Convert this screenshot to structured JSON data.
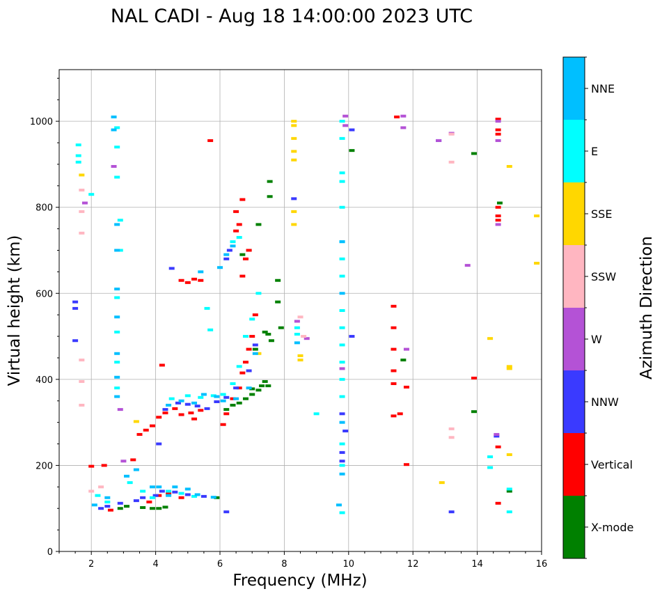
{
  "chart_data": {
    "type": "scatter",
    "title": "NAL CADI - Aug 18 14:00:00 2023 UTC",
    "xlabel": "Frequency (MHz)",
    "ylabel": "Virtual height (km)",
    "xlim": [
      1,
      16
    ],
    "ylim": [
      0,
      1120
    ],
    "xticks": [
      2,
      4,
      6,
      8,
      10,
      12,
      14,
      16
    ],
    "xtick_labels": [
      "2",
      "4",
      "6",
      "8",
      "10",
      "12",
      "14",
      "16"
    ],
    "yticks": [
      0,
      200,
      400,
      600,
      800,
      1000
    ],
    "ytick_labels": [
      "0",
      "200",
      "400",
      "600",
      "800",
      "1000"
    ],
    "grid": true,
    "colorbar": {
      "label": "Azimuth Direction",
      "categories": [
        "X-mode",
        "Vertical",
        "NNW",
        "W",
        "SSW",
        "SSE",
        "E",
        "NNE"
      ],
      "colors": [
        "#008000",
        "#ff0000",
        "#3a3aff",
        "#b452d6",
        "#ffb6c1",
        "#ffd700",
        "#00ffff",
        "#00bfff"
      ]
    },
    "series": [
      {
        "name": "X-mode",
        "points": [
          [
            2.9,
            100
          ],
          [
            3.1,
            105
          ],
          [
            3.6,
            102
          ],
          [
            3.9,
            100
          ],
          [
            4.1,
            100
          ],
          [
            4.3,
            103
          ],
          [
            5.9,
            125
          ],
          [
            6.2,
            330
          ],
          [
            6.4,
            340
          ],
          [
            6.6,
            345
          ],
          [
            6.8,
            355
          ],
          [
            7.0,
            365
          ],
          [
            7.2,
            375
          ],
          [
            7.3,
            385
          ],
          [
            7.4,
            395
          ],
          [
            7.5,
            385
          ],
          [
            7.0,
            378
          ],
          [
            7.1,
            470
          ],
          [
            7.4,
            510
          ],
          [
            7.5,
            505
          ],
          [
            7.6,
            490
          ],
          [
            7.8,
            580
          ],
          [
            7.8,
            630
          ],
          [
            7.9,
            520
          ],
          [
            6.7,
            690
          ],
          [
            6.9,
            700
          ],
          [
            7.2,
            760
          ],
          [
            7.55,
            825
          ],
          [
            7.55,
            860
          ],
          [
            10.1,
            932
          ],
          [
            13.9,
            925
          ],
          [
            13.9,
            325
          ],
          [
            14.7,
            810
          ],
          [
            15.0,
            140
          ],
          [
            11.7,
            445
          ]
        ]
      },
      {
        "name": "Vertical",
        "points": [
          [
            2.0,
            198
          ],
          [
            2.4,
            200
          ],
          [
            2.6,
            96
          ],
          [
            3.3,
            213
          ],
          [
            3.8,
            115
          ],
          [
            4.1,
            130
          ],
          [
            4.4,
            135
          ],
          [
            4.8,
            125
          ],
          [
            3.5,
            272
          ],
          [
            3.7,
            282
          ],
          [
            3.9,
            292
          ],
          [
            4.1,
            312
          ],
          [
            4.3,
            322
          ],
          [
            4.6,
            332
          ],
          [
            4.8,
            318
          ],
          [
            5.1,
            322
          ],
          [
            5.4,
            328
          ],
          [
            5.2,
            308
          ],
          [
            4.8,
            630
          ],
          [
            5.0,
            625
          ],
          [
            5.2,
            633
          ],
          [
            5.4,
            630
          ],
          [
            5.7,
            955
          ],
          [
            6.1,
            295
          ],
          [
            6.2,
            320
          ],
          [
            6.4,
            355
          ],
          [
            6.6,
            380
          ],
          [
            6.7,
            415
          ],
          [
            6.8,
            440
          ],
          [
            6.9,
            470
          ],
          [
            7.0,
            500
          ],
          [
            7.1,
            550
          ],
          [
            6.7,
            640
          ],
          [
            6.8,
            680
          ],
          [
            6.9,
            700
          ],
          [
            6.6,
            760
          ],
          [
            6.5,
            790
          ],
          [
            6.7,
            818
          ],
          [
            6.5,
            745
          ],
          [
            11.4,
            570
          ],
          [
            11.4,
            520
          ],
          [
            11.4,
            470
          ],
          [
            11.4,
            420
          ],
          [
            11.4,
            390
          ],
          [
            11.6,
            320
          ],
          [
            11.8,
            382
          ],
          [
            11.8,
            202
          ],
          [
            11.5,
            1010
          ],
          [
            11.4,
            315
          ],
          [
            13.9,
            403
          ],
          [
            14.65,
            1005
          ],
          [
            14.65,
            980
          ],
          [
            14.65,
            970
          ],
          [
            14.65,
            800
          ],
          [
            14.65,
            780
          ],
          [
            14.65,
            770
          ],
          [
            14.65,
            243
          ],
          [
            14.65,
            112
          ],
          [
            4.2,
            433
          ]
        ]
      },
      {
        "name": "NNW",
        "points": [
          [
            1.5,
            580
          ],
          [
            1.5,
            565
          ],
          [
            1.5,
            490
          ],
          [
            2.3,
            100
          ],
          [
            2.5,
            105
          ],
          [
            2.9,
            112
          ],
          [
            3.4,
            118
          ],
          [
            3.6,
            125
          ],
          [
            4.0,
            130
          ],
          [
            4.2,
            140
          ],
          [
            4.6,
            138
          ],
          [
            5.0,
            132
          ],
          [
            5.5,
            128
          ],
          [
            6.2,
            92
          ],
          [
            4.1,
            250
          ],
          [
            4.3,
            330
          ],
          [
            4.7,
            345
          ],
          [
            5.0,
            342
          ],
          [
            5.3,
            338
          ],
          [
            5.6,
            332
          ],
          [
            5.9,
            348
          ],
          [
            6.2,
            358
          ],
          [
            6.5,
            380
          ],
          [
            6.9,
            420
          ],
          [
            7.1,
            480
          ],
          [
            4.5,
            658
          ],
          [
            6.2,
            680
          ],
          [
            6.3,
            700
          ],
          [
            8.3,
            820
          ],
          [
            9.8,
            320
          ],
          [
            9.9,
            280
          ],
          [
            9.8,
            230
          ],
          [
            9.8,
            210
          ],
          [
            10.1,
            980
          ],
          [
            10.1,
            500
          ],
          [
            13.2,
            92
          ],
          [
            12.8,
            955
          ],
          [
            14.6,
            268
          ]
        ]
      },
      {
        "name": "W",
        "points": [
          [
            1.8,
            810
          ],
          [
            2.7,
            895
          ],
          [
            2.9,
            330
          ],
          [
            3.0,
            210
          ],
          [
            8.4,
            535
          ],
          [
            8.7,
            495
          ],
          [
            9.9,
            1012
          ],
          [
            9.9,
            990
          ],
          [
            9.8,
            425
          ],
          [
            11.7,
            1012
          ],
          [
            11.7,
            985
          ],
          [
            11.8,
            470
          ],
          [
            12.8,
            955
          ],
          [
            13.2,
            972
          ],
          [
            13.7,
            665
          ],
          [
            14.6,
            272
          ],
          [
            14.65,
            1000
          ],
          [
            14.65,
            955
          ],
          [
            14.65,
            760
          ]
        ]
      },
      {
        "name": "SSW",
        "points": [
          [
            1.7,
            840
          ],
          [
            1.7,
            790
          ],
          [
            1.7,
            740
          ],
          [
            1.7,
            445
          ],
          [
            1.7,
            395
          ],
          [
            1.7,
            340
          ],
          [
            2.0,
            140
          ],
          [
            2.3,
            150
          ],
          [
            8.5,
            545
          ],
          [
            8.6,
            500
          ],
          [
            13.2,
            905
          ],
          [
            13.2,
            970
          ],
          [
            13.2,
            285
          ],
          [
            13.2,
            265
          ]
        ]
      },
      {
        "name": "SSE",
        "points": [
          [
            1.7,
            875
          ],
          [
            8.3,
            1000
          ],
          [
            8.3,
            990
          ],
          [
            8.3,
            960
          ],
          [
            8.3,
            930
          ],
          [
            8.3,
            910
          ],
          [
            8.3,
            790
          ],
          [
            8.3,
            760
          ],
          [
            8.5,
            455
          ],
          [
            8.5,
            445
          ],
          [
            3.4,
            302
          ],
          [
            12.9,
            160
          ],
          [
            14.4,
            495
          ],
          [
            15.0,
            895
          ],
          [
            15.0,
            430
          ],
          [
            15.0,
            425
          ],
          [
            15.0,
            225
          ],
          [
            15.85,
            780
          ],
          [
            15.85,
            670
          ],
          [
            7.2,
            460
          ]
        ]
      },
      {
        "name": "E",
        "points": [
          [
            1.6,
            945
          ],
          [
            1.6,
            920
          ],
          [
            1.6,
            905
          ],
          [
            2.0,
            830
          ],
          [
            2.8,
            985
          ],
          [
            2.8,
            940
          ],
          [
            2.8,
            870
          ],
          [
            2.9,
            770
          ],
          [
            2.9,
            700
          ],
          [
            2.8,
            590
          ],
          [
            2.8,
            510
          ],
          [
            2.8,
            440
          ],
          [
            2.8,
            380
          ],
          [
            2.2,
            130
          ],
          [
            2.5,
            115
          ],
          [
            3.2,
            160
          ],
          [
            3.6,
            140
          ],
          [
            3.9,
            125
          ],
          [
            4.4,
            140
          ],
          [
            4.8,
            135
          ],
          [
            5.2,
            128
          ],
          [
            4.5,
            355
          ],
          [
            5.0,
            362
          ],
          [
            5.4,
            358
          ],
          [
            5.8,
            362
          ],
          [
            6.1,
            365
          ],
          [
            6.4,
            390
          ],
          [
            6.6,
            430
          ],
          [
            6.8,
            500
          ],
          [
            7.0,
            540
          ],
          [
            7.2,
            600
          ],
          [
            6.4,
            720
          ],
          [
            6.6,
            730
          ],
          [
            5.7,
            515
          ],
          [
            5.6,
            565
          ],
          [
            9.0,
            320
          ],
          [
            9.8,
            1000
          ],
          [
            9.8,
            960
          ],
          [
            9.8,
            880
          ],
          [
            9.8,
            860
          ],
          [
            9.8,
            800
          ],
          [
            9.8,
            720
          ],
          [
            9.8,
            680
          ],
          [
            9.8,
            640
          ],
          [
            9.8,
            560
          ],
          [
            9.8,
            520
          ],
          [
            9.8,
            480
          ],
          [
            9.8,
            440
          ],
          [
            9.8,
            400
          ],
          [
            9.8,
            360
          ],
          [
            9.8,
            250
          ],
          [
            9.8,
            200
          ],
          [
            9.8,
            90
          ],
          [
            8.4,
            520
          ],
          [
            8.4,
            505
          ],
          [
            14.4,
            220
          ],
          [
            14.4,
            195
          ],
          [
            15.0,
            145
          ],
          [
            15.0,
            92
          ]
        ]
      },
      {
        "name": "NNE",
        "points": [
          [
            2.7,
            1010
          ],
          [
            2.7,
            980
          ],
          [
            2.8,
            760
          ],
          [
            2.8,
            700
          ],
          [
            2.8,
            610
          ],
          [
            2.8,
            545
          ],
          [
            2.8,
            460
          ],
          [
            2.8,
            405
          ],
          [
            2.8,
            360
          ],
          [
            2.1,
            108
          ],
          [
            2.5,
            125
          ],
          [
            3.1,
            175
          ],
          [
            3.4,
            190
          ],
          [
            3.9,
            150
          ],
          [
            4.1,
            150
          ],
          [
            4.4,
            130
          ],
          [
            4.6,
            150
          ],
          [
            5.0,
            145
          ],
          [
            5.3,
            132
          ],
          [
            5.8,
            126
          ],
          [
            4.4,
            340
          ],
          [
            4.8,
            350
          ],
          [
            5.2,
            345
          ],
          [
            5.5,
            365
          ],
          [
            5.9,
            360
          ],
          [
            6.1,
            350
          ],
          [
            6.5,
            355
          ],
          [
            6.9,
            380
          ],
          [
            7.1,
            460
          ],
          [
            5.4,
            650
          ],
          [
            6.0,
            660
          ],
          [
            6.2,
            690
          ],
          [
            6.4,
            710
          ],
          [
            8.4,
            485
          ],
          [
            9.8,
            720
          ],
          [
            9.8,
            600
          ],
          [
            9.8,
            300
          ],
          [
            9.8,
            180
          ],
          [
            9.7,
            108
          ]
        ]
      }
    ]
  }
}
